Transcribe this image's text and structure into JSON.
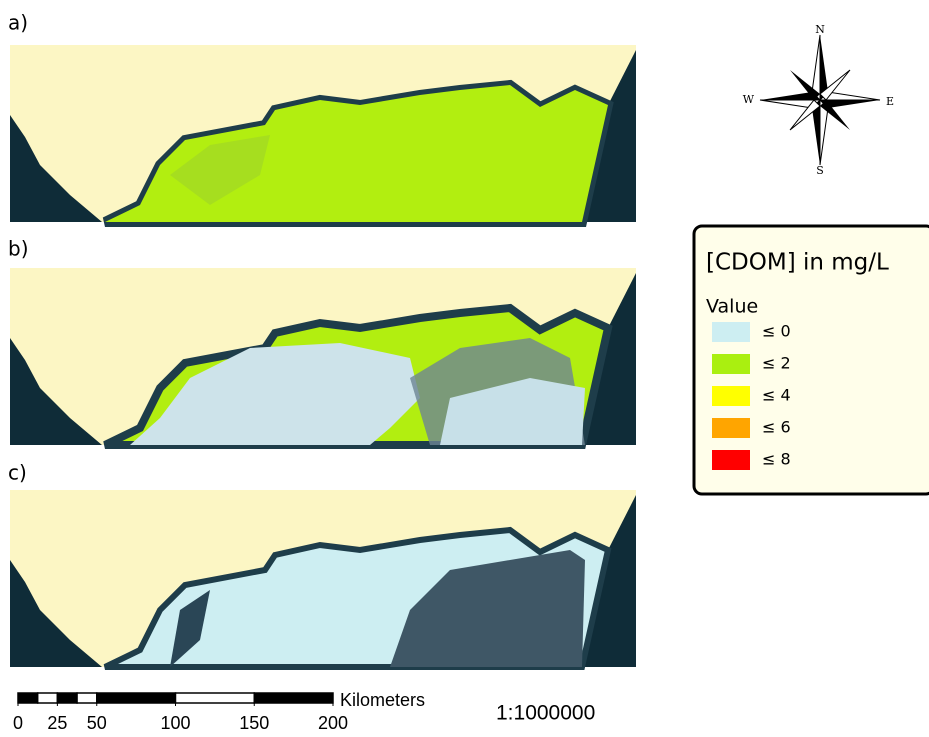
{
  "panels": [
    {
      "label": "a)"
    },
    {
      "label": "b)"
    },
    {
      "label": "c)"
    }
  ],
  "compass": {
    "north": "N",
    "south": "S",
    "east": "E",
    "west": "W"
  },
  "legend": {
    "title": "[CDOM] in mg/L",
    "subtitle": "Value",
    "items": [
      {
        "label": "≤ 0",
        "color": "#cdeef2"
      },
      {
        "label": "≤ 2",
        "color": "#aaef10"
      },
      {
        "label": "≤ 4",
        "color": "#ffff00"
      },
      {
        "label": "≤ 6",
        "color": "#ffa500"
      },
      {
        "label": "≤ 8",
        "color": "#ff0000"
      }
    ]
  },
  "scale_bar": {
    "unit": "Kilometers",
    "ticks": [
      0,
      25,
      50,
      100,
      150,
      200
    ],
    "ratio": "1:1000000"
  }
}
